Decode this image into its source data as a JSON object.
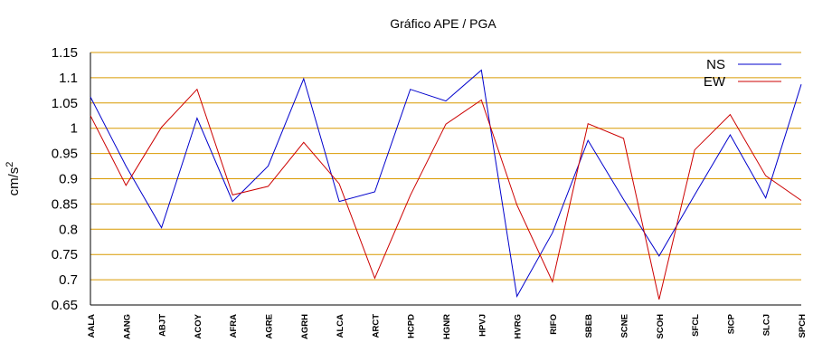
{
  "chart_data": {
    "type": "line",
    "title": "Gráfico  APE / PGA",
    "ylabel": "cm/s²",
    "xlabel": "",
    "ylim": [
      0.65,
      1.15
    ],
    "yticks": [
      "0.65",
      "0.7",
      "0.75",
      "0.8",
      "0.85",
      "0.9",
      "0.95",
      "1",
      "1.05",
      "1.1",
      "1.15"
    ],
    "grid": "horizontal",
    "grid_color": "#d99a00",
    "legend_position": "top-right",
    "categories": [
      "AALA",
      "AANG",
      "ABJT",
      "ACOY",
      "AFRA",
      "AGRE",
      "AGRH",
      "ALCA",
      "ARCT",
      "HCPD",
      "HGNR",
      "HPVJ",
      "HVRG",
      "RIFO",
      "SBEB",
      "SCNE",
      "SCOH",
      "SFCL",
      "SICP",
      "SLCJ",
      "SPCH"
    ],
    "series": [
      {
        "name": "NS",
        "color": "#0000cc",
        "values": [
          1.062,
          0.925,
          0.803,
          1.02,
          0.855,
          0.925,
          1.098,
          0.855,
          0.874,
          1.077,
          1.054,
          1.115,
          0.667,
          0.793,
          0.976,
          0.859,
          0.747,
          0.868,
          0.987,
          0.862,
          1.087
        ]
      },
      {
        "name": "EW",
        "color": "#cc0000",
        "values": [
          1.025,
          0.887,
          1.002,
          1.077,
          0.868,
          0.885,
          0.972,
          0.89,
          0.703,
          0.867,
          1.008,
          1.056,
          0.848,
          0.696,
          1.009,
          0.98,
          0.661,
          0.957,
          1.027,
          0.906,
          0.857
        ]
      }
    ]
  }
}
